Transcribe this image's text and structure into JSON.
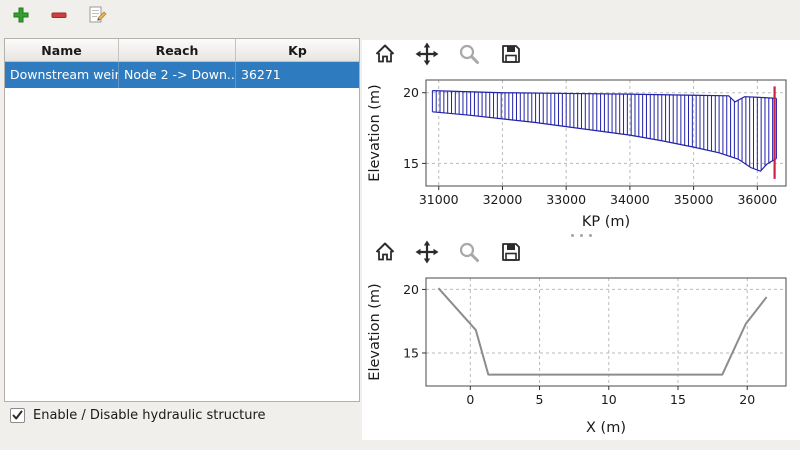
{
  "main_toolbar": {
    "buttons": [
      {
        "label": "add",
        "icon": "plus-icon"
      },
      {
        "label": "remove",
        "icon": "minus-icon"
      },
      {
        "label": "edit",
        "icon": "edit-icon"
      }
    ]
  },
  "table": {
    "columns": [
      "Name",
      "Reach",
      "Kp"
    ],
    "rows": [
      {
        "name": "Downstream weir",
        "reach": "Node 2 -> Down...",
        "kp": "36271",
        "selected": true
      }
    ]
  },
  "footer": {
    "checkbox_label": "Enable / Disable hydraulic structure",
    "checkbox_checked": true
  },
  "figure_toolbar": {
    "icons": [
      "home",
      "pan",
      "zoom",
      "save"
    ]
  },
  "colors": {
    "selection_blue": "#2e7bbf",
    "profile_blue": "#2222aa",
    "marker_red": "#cc2244",
    "section_gray": "#8c8c8c",
    "grid_gray": "#bbbbbb",
    "axis_dark": "#4a4a4a"
  },
  "chart_data": [
    {
      "type": "area",
      "name": "longitudinal-profile",
      "xlabel": "KP (m)",
      "ylabel": "Elevation (m)",
      "xlim": [
        30800,
        36450
      ],
      "ylim": [
        13.4,
        20.9
      ],
      "xticks": [
        31000,
        32000,
        33000,
        34000,
        35000,
        36000
      ],
      "yticks": [
        15,
        20
      ],
      "grid": true,
      "legend": false,
      "hatch_step": 60,
      "marker_x": 36271,
      "marker_y": [
        13.9,
        20.45
      ],
      "margins": {
        "l": 62,
        "r": 12,
        "t": 8,
        "b": 46
      },
      "series": [
        {
          "name": "top-elevation",
          "x": [
            30900,
            32000,
            33000,
            34000,
            35000,
            35550,
            35650,
            35800,
            36000,
            36300
          ],
          "y": [
            20.15,
            20.0,
            19.95,
            19.9,
            19.82,
            19.78,
            19.35,
            19.72,
            19.68,
            19.6
          ]
        },
        {
          "name": "bottom-elevation",
          "x": [
            30900,
            31500,
            32000,
            32500,
            33000,
            33500,
            34000,
            34500,
            35000,
            35400,
            35700,
            35900,
            36050,
            36150,
            36300
          ],
          "y": [
            18.65,
            18.4,
            18.15,
            17.9,
            17.6,
            17.3,
            17.0,
            16.6,
            16.15,
            15.75,
            15.3,
            14.7,
            14.45,
            14.95,
            15.35
          ]
        }
      ]
    },
    {
      "type": "line",
      "name": "cross-section",
      "xlabel": "X (m)",
      "ylabel": "Elevation (m)",
      "xlim": [
        -3.2,
        22.8
      ],
      "ylim": [
        12.4,
        20.9
      ],
      "xticks": [
        0,
        5,
        10,
        15,
        20
      ],
      "yticks": [
        15,
        20
      ],
      "grid": true,
      "legend": false,
      "margins": {
        "l": 62,
        "r": 12,
        "t": 8,
        "b": 52
      },
      "series": [
        {
          "name": "section-line",
          "x": [
            -2.3,
            0.4,
            1.3,
            18.2,
            19.9,
            21.4
          ],
          "y": [
            20.1,
            16.8,
            13.3,
            13.3,
            17.3,
            19.4
          ]
        }
      ]
    }
  ]
}
